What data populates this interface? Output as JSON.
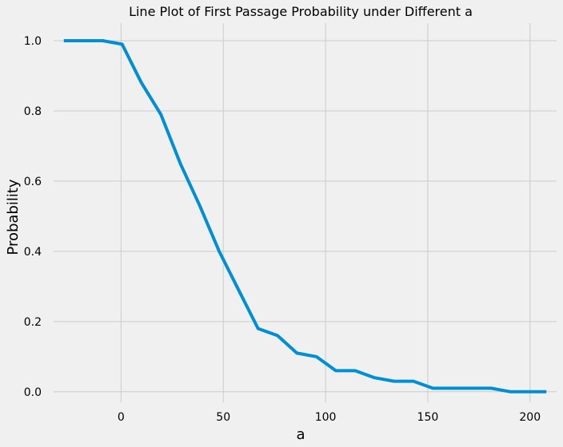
{
  "chart_data": {
    "type": "line",
    "title": "Line Plot of First Passage Probability under Different a",
    "xlabel": "a",
    "ylabel": "Probability",
    "xlim": [
      -33,
      213
    ],
    "ylim": [
      -0.03,
      1.05
    ],
    "xticks": [
      0,
      50,
      100,
      150,
      200
    ],
    "yticks": [
      0.0,
      0.2,
      0.4,
      0.6,
      0.8,
      1.0
    ],
    "xtick_labels": [
      "0",
      "50",
      "100",
      "150",
      "200"
    ],
    "ytick_labels": [
      "0.0",
      "0.2",
      "0.4",
      "0.6",
      "0.8",
      "1.0"
    ],
    "grid": true,
    "line_color": "#008fd5",
    "background": "#f0f0f0",
    "grid_color": "#cbcbcb",
    "series": [
      {
        "x": [
          -28,
          -18.5,
          -9,
          0.5,
          10,
          19.5,
          29,
          38.5,
          48,
          57.5,
          67,
          76.5,
          86,
          95.5,
          105,
          114.5,
          124,
          133.5,
          143,
          152.5,
          162,
          171.5,
          181,
          190.5,
          200,
          208
        ],
        "values": [
          1.0,
          1.0,
          1.0,
          0.99,
          0.88,
          0.79,
          0.65,
          0.53,
          0.4,
          0.29,
          0.18,
          0.16,
          0.11,
          0.1,
          0.06,
          0.06,
          0.04,
          0.03,
          0.03,
          0.01,
          0.01,
          0.01,
          0.01,
          0.0,
          0.0,
          0.0
        ]
      }
    ]
  }
}
